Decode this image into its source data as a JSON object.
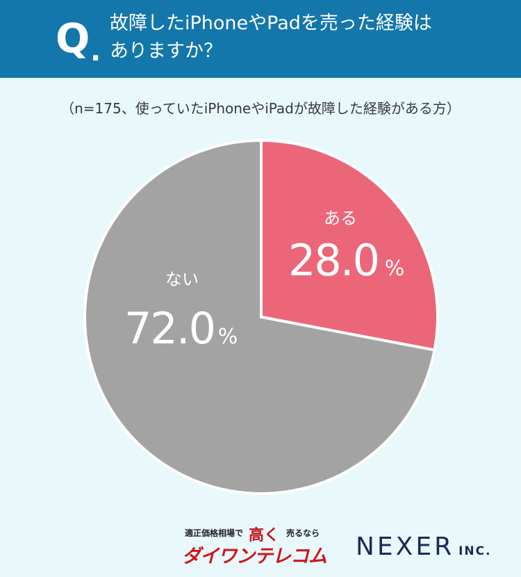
{
  "header": {
    "q_letter": "Q",
    "q_dot": ".",
    "question_line1": "故障したiPhoneやPadを売った経験は",
    "question_line2": "ありますか？",
    "background": "#1477ab"
  },
  "sample_note": "（n=175、使っていたiPhoneやiPadが故障した経験がある方）",
  "chart_data": {
    "type": "pie",
    "slices": [
      {
        "label": "ある",
        "value": 28.0,
        "value_text": "28.0",
        "unit": "%",
        "color": "#ec6679"
      },
      {
        "label": "ない",
        "value": 72.0,
        "value_text": "72.0",
        "unit": "%",
        "color": "#a3a3a3"
      }
    ],
    "start": "12 o'clock",
    "direction": "clockwise",
    "legend": "none"
  },
  "footer": {
    "daiwa_prefix": "適正価格相場で",
    "daiwa_highlight": "高く",
    "daiwa_suffix": "売るなら",
    "daiwa_name": "ダイワンテレコム",
    "nexer_name": "NEXER",
    "nexer_suffix": "INC."
  }
}
